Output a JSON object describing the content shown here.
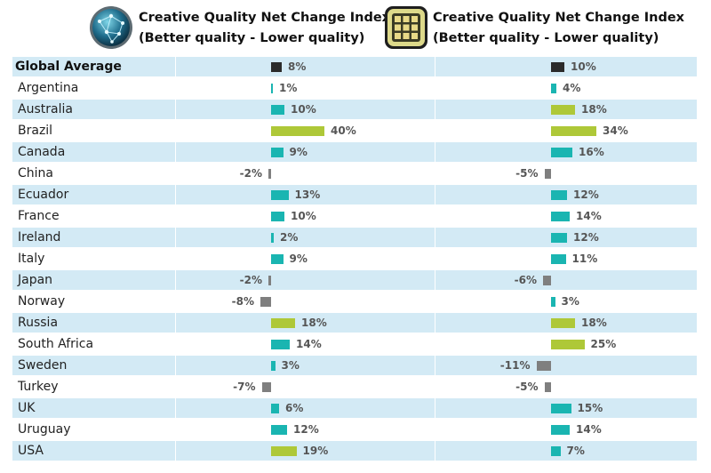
{
  "headers": [
    {
      "title_line1": "Creative Quality Net Change Index",
      "title_line2": "(Better quality - Lower quality)",
      "icon": "network-globe-icon"
    },
    {
      "title_line1": "Creative Quality Net Change Index",
      "title_line2": "(Better quality - Lower quality)",
      "icon": "grid-app-icon"
    }
  ],
  "colors": {
    "row_even": "#d3eaf5",
    "row_odd": "#ffffff",
    "bar_teal": "#1ab5b1",
    "bar_green": "#aec838",
    "bar_grey": "#7f7f7f",
    "bar_dark": "#2b2b2b"
  },
  "chart_data": [
    {
      "type": "bar",
      "title": "Creative Quality Net Change Index (Better quality - Lower quality)",
      "categories": [
        "Global Average",
        "Argentina",
        "Australia",
        "Brazil",
        "Canada",
        "China",
        "Ecuador",
        "France",
        "Ireland",
        "Italy",
        "Japan",
        "Norway",
        "Russia",
        "South Africa",
        "Sweden",
        "Turkey",
        "UK",
        "Uruguay",
        "USA"
      ],
      "values": [
        8,
        1,
        10,
        40,
        9,
        -2,
        13,
        10,
        2,
        9,
        -2,
        -8,
        18,
        14,
        3,
        -7,
        6,
        12,
        19
      ],
      "labels": [
        "8%",
        "1%",
        "10%",
        "40%",
        "9%",
        "-2%",
        "13%",
        "10%",
        "2%",
        "9%",
        "-2%",
        "-8%",
        "18%",
        "14%",
        "3%",
        "-7%",
        "6%",
        "12%",
        "19%"
      ],
      "unit": "%"
    },
    {
      "type": "bar",
      "title": "Creative Quality Net Change Index (Better quality - Lower quality)",
      "categories": [
        "Global Average",
        "Argentina",
        "Australia",
        "Brazil",
        "Canada",
        "China",
        "Ecuador",
        "France",
        "Ireland",
        "Italy",
        "Japan",
        "Norway",
        "Russia",
        "South Africa",
        "Sweden",
        "Turkey",
        "UK",
        "Uruguay",
        "USA"
      ],
      "values": [
        10,
        4,
        18,
        34,
        16,
        -5,
        12,
        14,
        12,
        11,
        -6,
        3,
        18,
        25,
        -11,
        -5,
        15,
        14,
        7
      ],
      "labels": [
        "10%",
        "4%",
        "18%",
        "34%",
        "16%",
        "-5%",
        "12%",
        "14%",
        "12%",
        "11%",
        "-6%",
        "3%",
        "18%",
        "25%",
        "-11%",
        "-5%",
        "15%",
        "14%",
        "7%"
      ],
      "unit": "%"
    }
  ]
}
